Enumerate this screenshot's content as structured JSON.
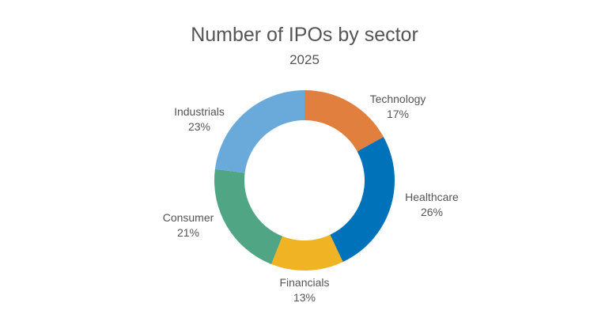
{
  "title": "Number of IPOs by sector",
  "subtitle": "2025",
  "chart_data": {
    "type": "pie",
    "variant": "donut",
    "title": "Number of IPOs by sector",
    "subtitle": "2025",
    "categories": [
      "Technology",
      "Healthcare",
      "Financials",
      "Consumer",
      "Industrials"
    ],
    "values": [
      17,
      26,
      13,
      21,
      23
    ],
    "unit": "%",
    "colors": [
      "#E07F3E",
      "#0072BA",
      "#F0B323",
      "#4FA584",
      "#6AAADB"
    ],
    "start_angle": "12 o'clock, clockwise",
    "legend": "none (direct labels)"
  },
  "labels": [
    {
      "name": "Technology",
      "pct": "17%"
    },
    {
      "name": "Healthcare",
      "pct": "26%"
    },
    {
      "name": "Financials",
      "pct": "13%"
    },
    {
      "name": "Consumer",
      "pct": "21%"
    },
    {
      "name": "Industrials",
      "pct": "23%"
    }
  ]
}
